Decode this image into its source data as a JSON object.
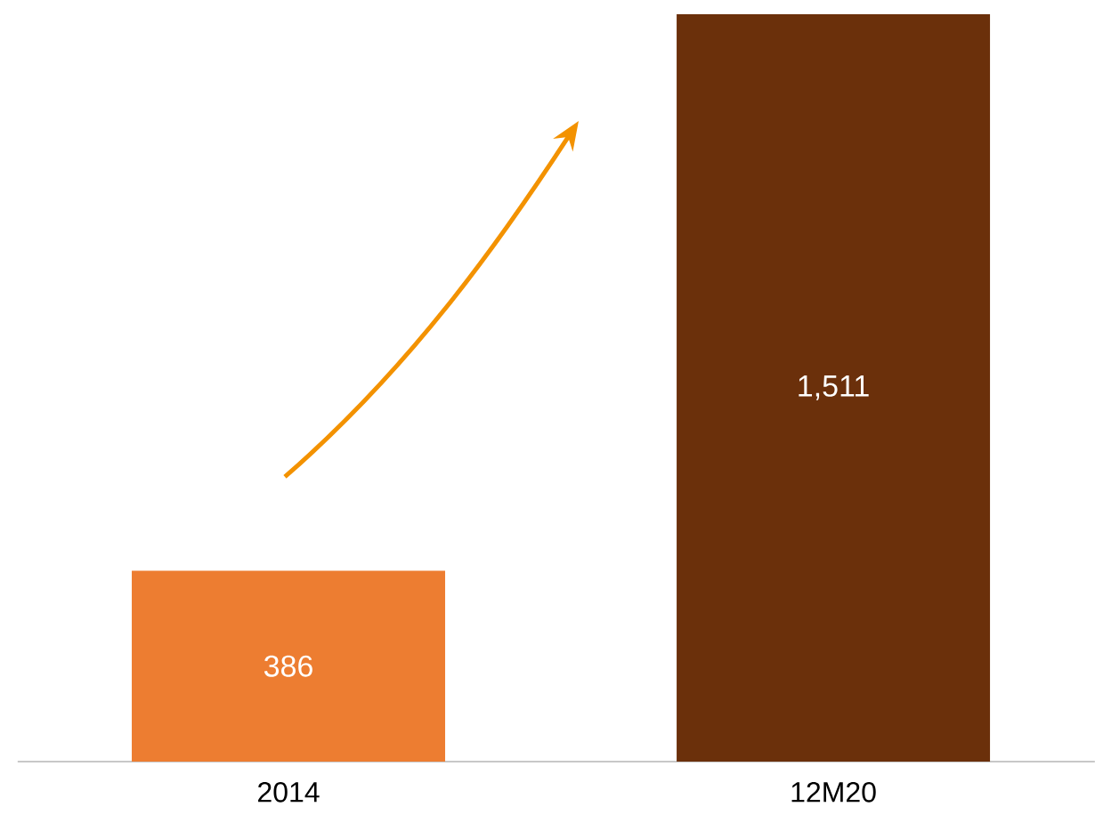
{
  "chart_data": {
    "type": "bar",
    "categories": [
      "2014",
      "12M20"
    ],
    "values": [
      386,
      1511
    ],
    "colors": [
      "#ed7d31",
      "#6b300b"
    ],
    "value_labels": [
      "386",
      "1,511"
    ]
  }
}
